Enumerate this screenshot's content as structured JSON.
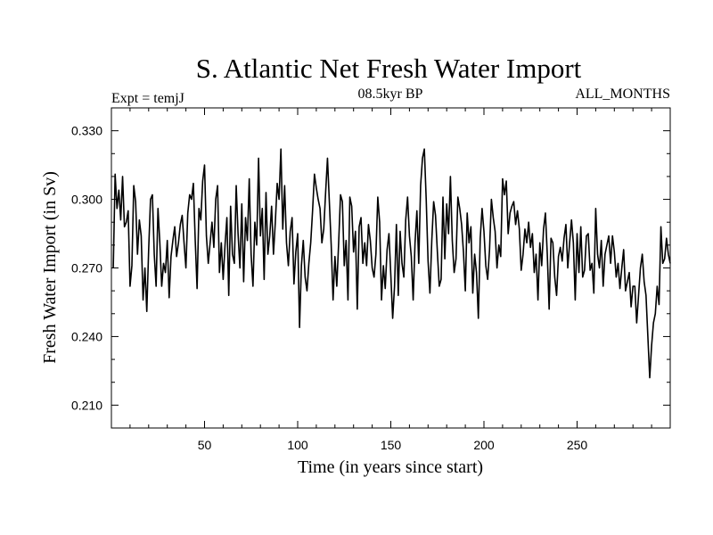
{
  "chart_data": {
    "type": "line",
    "title": "S. Atlantic Net Fresh Water Import",
    "subtitle_left": "Expt = temjJ",
    "subtitle_center": "08.5kyr BP",
    "subtitle_right": "ALL_MONTHS",
    "xlabel": "Time (in years since start)",
    "ylabel": "Fresh Water Import (in Sv)",
    "xlim": [
      0,
      300
    ],
    "ylim": [
      0.2,
      0.34
    ],
    "xticks": [
      50,
      100,
      150,
      200,
      250
    ],
    "xtick_labels": [
      "50",
      "100",
      "150",
      "200",
      "250"
    ],
    "yticks": [
      0.21,
      0.24,
      0.27,
      0.3,
      0.33
    ],
    "ytick_labels": [
      "0.210",
      "0.240",
      "0.270",
      "0.300",
      "0.330"
    ],
    "series": [
      {
        "name": "Fresh Water Import",
        "color": "#000000",
        "x_start": 1,
        "x_step": 1,
        "values": [
          0.27,
          0.311,
          0.296,
          0.304,
          0.291,
          0.31,
          0.288,
          0.29,
          0.295,
          0.262,
          0.271,
          0.306,
          0.299,
          0.276,
          0.291,
          0.284,
          0.256,
          0.27,
          0.251,
          0.278,
          0.3,
          0.302,
          0.276,
          0.262,
          0.296,
          0.281,
          0.262,
          0.272,
          0.268,
          0.282,
          0.257,
          0.275,
          0.282,
          0.288,
          0.275,
          0.281,
          0.289,
          0.293,
          0.281,
          0.27,
          0.294,
          0.302,
          0.3,
          0.307,
          0.282,
          0.261,
          0.296,
          0.291,
          0.308,
          0.315,
          0.284,
          0.272,
          0.281,
          0.29,
          0.279,
          0.3,
          0.306,
          0.268,
          0.281,
          0.265,
          0.28,
          0.292,
          0.258,
          0.297,
          0.276,
          0.272,
          0.306,
          0.285,
          0.27,
          0.298,
          0.264,
          0.292,
          0.282,
          0.309,
          0.276,
          0.262,
          0.29,
          0.28,
          0.318,
          0.284,
          0.296,
          0.265,
          0.303,
          0.276,
          0.284,
          0.297,
          0.276,
          0.29,
          0.307,
          0.3,
          0.322,
          0.287,
          0.306,
          0.281,
          0.271,
          0.286,
          0.292,
          0.263,
          0.277,
          0.285,
          0.244,
          0.271,
          0.282,
          0.266,
          0.26,
          0.272,
          0.281,
          0.295,
          0.311,
          0.305,
          0.3,
          0.296,
          0.281,
          0.287,
          0.303,
          0.318,
          0.299,
          0.28,
          0.256,
          0.275,
          0.262,
          0.281,
          0.302,
          0.299,
          0.271,
          0.282,
          0.256,
          0.301,
          0.297,
          0.277,
          0.286,
          0.252,
          0.288,
          0.292,
          0.272,
          0.281,
          0.271,
          0.289,
          0.282,
          0.27,
          0.266,
          0.276,
          0.301,
          0.29,
          0.256,
          0.271,
          0.261,
          0.278,
          0.285,
          0.267,
          0.248,
          0.262,
          0.289,
          0.258,
          0.286,
          0.272,
          0.266,
          0.291,
          0.301,
          0.284,
          0.275,
          0.256,
          0.281,
          0.295,
          0.272,
          0.306,
          0.318,
          0.322,
          0.3,
          0.273,
          0.259,
          0.282,
          0.299,
          0.293,
          0.277,
          0.262,
          0.265,
          0.301,
          0.274,
          0.298,
          0.285,
          0.31,
          0.282,
          0.268,
          0.274,
          0.301,
          0.296,
          0.289,
          0.277,
          0.26,
          0.294,
          0.281,
          0.288,
          0.259,
          0.276,
          0.268,
          0.248,
          0.283,
          0.296,
          0.286,
          0.271,
          0.265,
          0.278,
          0.3,
          0.292,
          0.286,
          0.27,
          0.28,
          0.275,
          0.309,
          0.302,
          0.308,
          0.285,
          0.294,
          0.297,
          0.299,
          0.289,
          0.295,
          0.287,
          0.269,
          0.276,
          0.287,
          0.281,
          0.29,
          0.279,
          0.285,
          0.268,
          0.276,
          0.256,
          0.281,
          0.271,
          0.287,
          0.294,
          0.276,
          0.252,
          0.283,
          0.281,
          0.266,
          0.258,
          0.275,
          0.279,
          0.273,
          0.283,
          0.289,
          0.27,
          0.281,
          0.291,
          0.281,
          0.256,
          0.285,
          0.268,
          0.288,
          0.266,
          0.269,
          0.284,
          0.285,
          0.269,
          0.272,
          0.259,
          0.296,
          0.276,
          0.27,
          0.282,
          0.262,
          0.276,
          0.28,
          0.284,
          0.272,
          0.284,
          0.277,
          0.266,
          0.272,
          0.261,
          0.27,
          0.278,
          0.26,
          0.264,
          0.268,
          0.253,
          0.262,
          0.262,
          0.246,
          0.258,
          0.27,
          0.276,
          0.264,
          0.258,
          0.24,
          0.222,
          0.236,
          0.246,
          0.25,
          0.262,
          0.254,
          0.288,
          0.272,
          0.274,
          0.283,
          0.276,
          0.272
        ]
      }
    ]
  }
}
